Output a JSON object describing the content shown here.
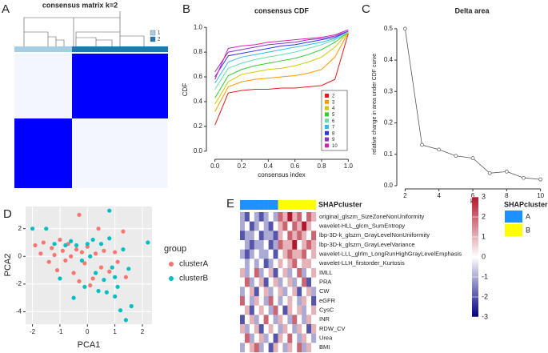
{
  "chart_data": [
    {
      "type": "consensus",
      "panel": "A",
      "title": "consensus matrix k=2",
      "legend": {
        "categories": [
          "1",
          "2"
        ],
        "colors": [
          "#a6cee3",
          "#1f78b4"
        ]
      },
      "block_color": "#0000ff"
    },
    {
      "type": "line",
      "panel": "B",
      "title": "consensus CDF",
      "xlabel": "consensus index",
      "ylabel": "CDF",
      "x": [
        0,
        0.1,
        0.2,
        0.3,
        0.4,
        0.5,
        0.6,
        0.7,
        0.8,
        0.9,
        1.0
      ],
      "xlim": [
        -0.04,
        1.04
      ],
      "ylim": [
        -0.04,
        1.04
      ],
      "xticks": [
        {
          "value": 0,
          "label": "0.0"
        },
        0.2,
        0.4,
        0.6,
        0.8,
        {
          "value": 1,
          "label": "1.0"
        }
      ],
      "yticks": [
        {
          "value": 0,
          "label": "0.0"
        },
        0.2,
        0.4,
        0.6,
        0.8,
        {
          "value": 1,
          "label": "1.0"
        }
      ],
      "series": [
        {
          "name": "2",
          "color": "#e41a1c",
          "values": [
            0.21,
            0.47,
            0.49,
            0.5,
            0.5,
            0.51,
            0.51,
            0.52,
            0.53,
            0.58,
            0.95
          ]
        },
        {
          "name": "3",
          "color": "#ff9900",
          "values": [
            0.32,
            0.52,
            0.56,
            0.58,
            0.59,
            0.6,
            0.61,
            0.63,
            0.66,
            0.76,
            0.96
          ]
        },
        {
          "name": "4",
          "color": "#cccc00",
          "values": [
            0.38,
            0.56,
            0.62,
            0.64,
            0.66,
            0.67,
            0.69,
            0.72,
            0.76,
            0.84,
            0.96
          ]
        },
        {
          "name": "5",
          "color": "#33cc33",
          "values": [
            0.43,
            0.61,
            0.66,
            0.69,
            0.71,
            0.73,
            0.75,
            0.78,
            0.82,
            0.88,
            0.96
          ]
        },
        {
          "name": "6",
          "color": "#66ddaa",
          "values": [
            0.5,
            0.67,
            0.71,
            0.74,
            0.76,
            0.78,
            0.8,
            0.83,
            0.86,
            0.9,
            0.96
          ]
        },
        {
          "name": "7",
          "color": "#33bbee",
          "values": [
            0.55,
            0.72,
            0.76,
            0.78,
            0.8,
            0.82,
            0.84,
            0.86,
            0.88,
            0.91,
            0.97
          ]
        },
        {
          "name": "8",
          "color": "#3333dd",
          "values": [
            0.6,
            0.77,
            0.79,
            0.81,
            0.83,
            0.85,
            0.86,
            0.88,
            0.9,
            0.92,
            0.97
          ]
        },
        {
          "name": "9",
          "color": "#8833cc",
          "values": [
            0.64,
            0.8,
            0.82,
            0.84,
            0.86,
            0.87,
            0.88,
            0.9,
            0.91,
            0.93,
            0.97
          ]
        },
        {
          "name": "10",
          "color": "#dd22aa",
          "values": [
            0.58,
            0.83,
            0.85,
            0.86,
            0.88,
            0.89,
            0.9,
            0.91,
            0.92,
            0.94,
            0.98
          ]
        }
      ]
    },
    {
      "type": "linepoints",
      "panel": "C",
      "title": "Delta area",
      "xlabel": "k",
      "ylabel": "relative change in area under CDF curve",
      "x": [
        2,
        3,
        4,
        5,
        6,
        7,
        8,
        9,
        10
      ],
      "values": [
        0.5,
        0.13,
        0.115,
        0.095,
        0.088,
        0.04,
        0.045,
        0.025,
        0.02
      ],
      "xlim": [
        1.7,
        10.3
      ],
      "ylim": [
        0,
        0.52
      ],
      "xticks": [
        2,
        4,
        6,
        8,
        10
      ],
      "yticks": [
        {
          "value": 0,
          "label": "0.0"
        },
        0.1,
        0.2,
        0.3,
        0.4,
        0.5
      ],
      "color": "#555555"
    },
    {
      "type": "scatter",
      "panel": "D",
      "xlabel": "PCA1",
      "ylabel": "PCA2",
      "legend_title": "group",
      "xlim": [
        -2.25,
        2.35
      ],
      "ylim": [
        -4.9,
        3.6
      ],
      "xticks": [
        -2,
        -1,
        0,
        1,
        2
      ],
      "yticks": [
        -4,
        -2,
        0,
        2
      ],
      "grid": true,
      "series": [
        {
          "name": "clusterA",
          "color": "#f8766d",
          "x": [
            -1.9,
            -1.7,
            -1.6,
            -1.4,
            -1.2,
            -1.1,
            -1.0,
            -0.9,
            -0.8,
            -0.7,
            -0.6,
            -0.5,
            -0.4,
            -0.3,
            -0.2,
            -0.1,
            0.0,
            0.1,
            0.2,
            0.3,
            0.4,
            0.5,
            0.6,
            0.8,
            1.0,
            1.1,
            1.3,
            1.4,
            -0.3,
            -1.3
          ],
          "y": [
            0.8,
            0.2,
            1.0,
            -0.4,
            0.1,
            -1.0,
            1.2,
            0.4,
            -0.3,
            0.9,
            0.0,
            -1.2,
            0.5,
            3.0,
            0.3,
            -0.5,
            0.7,
            -2.1,
            -1.6,
            0.2,
            2.0,
            -0.8,
            0.4,
            -1.1,
            0.3,
            -0.4,
            1.8,
            -1.5,
            -1.8,
            0.6
          ]
        },
        {
          "name": "clusterB",
          "color": "#00bfc4",
          "x": [
            -2.0,
            -1.5,
            -1.2,
            -1.0,
            -0.8,
            -0.6,
            -0.5,
            -0.4,
            -0.2,
            0.0,
            0.1,
            0.2,
            0.3,
            0.4,
            0.5,
            0.6,
            0.7,
            0.8,
            0.9,
            1.0,
            1.1,
            1.2,
            1.3,
            1.4,
            1.5,
            1.6,
            0.8,
            2.2,
            1.0,
            -0.1
          ],
          "y": [
            2.0,
            2.0,
            0.9,
            -1.6,
            0.8,
            1.1,
            -3.0,
            0.8,
            -0.3,
            0.9,
            0.0,
            1.2,
            -1.2,
            -2.5,
            0.9,
            -1.7,
            -2.6,
            1.3,
            -0.8,
            -1.5,
            -2.2,
            -3.9,
            0.5,
            -4.6,
            -0.9,
            -3.6,
            3.3,
            1.0,
            -2.9,
            -2.2
          ]
        }
      ]
    },
    {
      "type": "heatmap",
      "panel": "E",
      "annotation_name": "SHAPcluster",
      "legend_title": "SHAPcluster",
      "groups": [
        {
          "name": "A",
          "color": "#1e90ff"
        },
        {
          "name": "B",
          "color": "#ffff00"
        }
      ],
      "column_groups": [
        "A",
        "A",
        "A",
        "A",
        "A",
        "A",
        "A",
        "A",
        "B",
        "B",
        "B",
        "B",
        "B",
        "B",
        "B",
        "B"
      ],
      "zlim": [
        -3,
        3
      ],
      "zticks": [
        3,
        2,
        1,
        0,
        -1,
        -2,
        -3
      ],
      "low_color": "#000080",
      "high_color": "#b2182b",
      "rows": [
        "original_glszm_SizeZoneNonUniformity",
        "wavelet-HLL_glcm_SumEntropy",
        "lbp-3D-k_glszm_GrayLevelNonUniformity",
        "lbp-3D-k_glszm_GrayLevelVariance",
        "wavelet-LLL_glrlm_LongRunHighGrayLevelEmphasis",
        "wavelet-LLH_firstorder_Kurtosis",
        "IMLL",
        "PRA",
        "CW",
        "eGFR",
        "CysC",
        "INR",
        "RDW_CV",
        "Urea",
        "BMI"
      ],
      "values": [
        [
          -1,
          -2,
          0,
          -1,
          -2,
          -1,
          0,
          -1,
          2,
          1,
          3,
          1,
          2,
          0,
          2,
          1
        ],
        [
          -1,
          0,
          -2,
          -1,
          0,
          -1,
          -2,
          0,
          1,
          2,
          0,
          2,
          1,
          3,
          1,
          0
        ],
        [
          -2,
          -1,
          -1,
          0,
          -2,
          -1,
          -1,
          -2,
          1,
          0,
          2,
          1,
          2,
          1,
          0,
          2
        ],
        [
          0,
          -1,
          -2,
          -1,
          -1,
          0,
          -2,
          -1,
          2,
          1,
          1,
          3,
          0,
          1,
          2,
          1
        ],
        [
          -1,
          -2,
          -1,
          0,
          -1,
          -1,
          0,
          -2,
          0,
          1,
          2,
          1,
          1,
          2,
          0,
          1
        ],
        [
          0,
          -1,
          0,
          -1,
          0,
          -2,
          -1,
          0,
          1,
          0,
          1,
          2,
          0,
          1,
          1,
          0
        ],
        [
          1,
          -1,
          0,
          2,
          -1,
          0,
          1,
          -2,
          0,
          1,
          -1,
          0,
          2,
          -1,
          0,
          1
        ],
        [
          0,
          2,
          -1,
          0,
          1,
          -2,
          0,
          1,
          -1,
          0,
          1,
          -1,
          0,
          2,
          -2,
          0
        ],
        [
          -1,
          0,
          1,
          -2,
          0,
          1,
          -1,
          0,
          1,
          -1,
          0,
          1,
          -2,
          0,
          1,
          -1
        ],
        [
          2,
          0,
          -1,
          1,
          0,
          -1,
          2,
          0,
          -1,
          0,
          1,
          0,
          -1,
          1,
          0,
          -2
        ],
        [
          0,
          1,
          -2,
          0,
          1,
          0,
          -1,
          2,
          0,
          -2,
          1,
          0,
          1,
          -1,
          0,
          1
        ],
        [
          -2,
          0,
          1,
          -1,
          0,
          2,
          0,
          -1,
          1,
          0,
          -1,
          2,
          0,
          -1,
          1,
          0
        ],
        [
          1,
          -1,
          0,
          1,
          -2,
          0,
          1,
          0,
          -1,
          1,
          0,
          -1,
          1,
          0,
          -2,
          1
        ],
        [
          0,
          2,
          -1,
          0,
          1,
          -1,
          0,
          -2,
          1,
          0,
          2,
          0,
          -1,
          1,
          0,
          -1
        ],
        [
          -1,
          0,
          1,
          2,
          -1,
          0,
          -2,
          1,
          0,
          -1,
          1,
          0,
          2,
          -1,
          1,
          0
        ]
      ]
    }
  ]
}
